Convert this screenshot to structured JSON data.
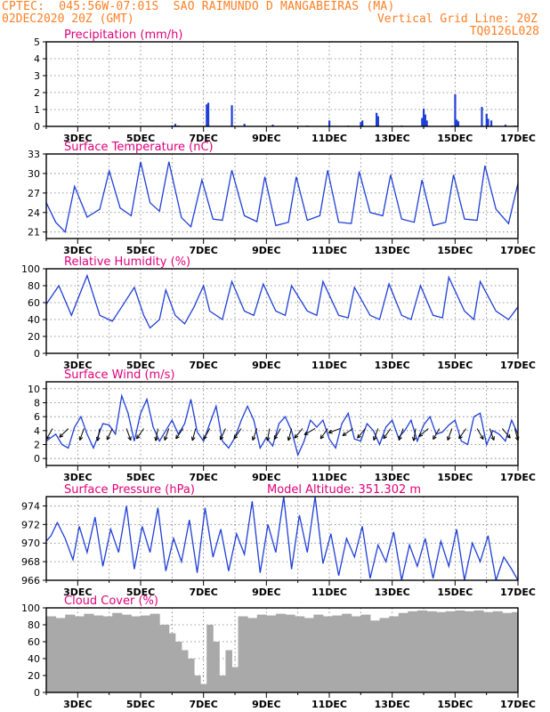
{
  "header": {
    "line1": "CPTEC:  045:56W-07:01S  SAO RAIMUNDO D MANGABEIRAS (MA)",
    "date": "02DEC2020 20Z (GMT)",
    "grid_note": "Vertical Grid Line: 20Z",
    "code": "TQ0126L028"
  },
  "colors": {
    "header": "#ff7f24",
    "title": "#e0007a",
    "series": "#1f3fd6",
    "bars": "#1f3fd6",
    "cloud": "#a9a9a9",
    "arrows": "#000000"
  },
  "x_axis": {
    "ticks": [
      "3DEC",
      "5DEC",
      "7DEC",
      "9DEC",
      "11DEC",
      "13DEC",
      "15DEC",
      "17DEC"
    ],
    "range_days": [
      2.0,
      17.0
    ]
  },
  "chart_data": [
    {
      "id": "precip",
      "type": "bar",
      "title": "Precipitation (mm/h)",
      "ylim": [
        0,
        5
      ],
      "yticks": [
        "0",
        "1",
        "2",
        "3",
        "4",
        "5"
      ],
      "grid": true,
      "bars": [
        [
          2.7,
          0.02
        ],
        [
          3.4,
          0.02
        ],
        [
          4.4,
          0.03
        ],
        [
          5.5,
          0.03
        ],
        [
          6.0,
          0.05
        ],
        [
          6.1,
          0.15
        ],
        [
          6.2,
          0.05
        ],
        [
          7.1,
          1.3
        ],
        [
          7.15,
          1.4
        ],
        [
          7.9,
          1.25
        ],
        [
          8.3,
          0.15
        ],
        [
          9.2,
          0.1
        ],
        [
          10.3,
          0.05
        ],
        [
          11.0,
          0.35
        ],
        [
          11.6,
          0.05
        ],
        [
          12.0,
          0.25
        ],
        [
          12.05,
          0.35
        ],
        [
          12.5,
          0.8
        ],
        [
          12.55,
          0.6
        ],
        [
          13.3,
          0.05
        ],
        [
          13.95,
          0.5
        ],
        [
          14.0,
          1.05
        ],
        [
          14.05,
          0.7
        ],
        [
          14.1,
          0.35
        ],
        [
          14.9,
          0.05
        ],
        [
          15.0,
          1.9
        ],
        [
          15.05,
          0.4
        ],
        [
          15.1,
          0.3
        ],
        [
          15.85,
          1.15
        ],
        [
          16.0,
          0.75
        ],
        [
          16.05,
          0.45
        ],
        [
          16.15,
          0.35
        ],
        [
          16.6,
          0.1
        ],
        [
          16.9,
          0.05
        ]
      ]
    },
    {
      "id": "temp",
      "type": "line",
      "title": "Surface Temperature (nC)",
      "ylim": [
        20,
        33
      ],
      "yticks": [
        "21",
        "24",
        "27",
        "30",
        "33"
      ],
      "ytick_values": [
        21,
        24,
        27,
        30,
        33
      ],
      "grid": true,
      "x": [
        2.0,
        2.3,
        2.6,
        2.9,
        3.3,
        3.7,
        4.0,
        4.35,
        4.7,
        5.0,
        5.3,
        5.6,
        5.9,
        6.3,
        6.6,
        6.95,
        7.3,
        7.6,
        7.9,
        8.3,
        8.7,
        8.95,
        9.3,
        9.7,
        9.95,
        10.3,
        10.7,
        10.95,
        11.3,
        11.7,
        11.95,
        12.3,
        12.7,
        12.95,
        13.3,
        13.7,
        13.95,
        14.3,
        14.7,
        14.95,
        15.3,
        15.7,
        15.95,
        16.3,
        16.7,
        17.0
      ],
      "y": [
        25.5,
        22.5,
        21.0,
        28.0,
        23.3,
        24.5,
        30.4,
        24.7,
        23.5,
        31.8,
        25.5,
        24.2,
        31.8,
        23.2,
        21.8,
        29.0,
        23.0,
        22.8,
        30.5,
        23.5,
        22.6,
        29.5,
        22.0,
        22.5,
        29.5,
        22.8,
        23.5,
        30.5,
        22.5,
        22.3,
        30.3,
        24.0,
        23.5,
        29.8,
        23.0,
        22.5,
        29.0,
        22.0,
        22.5,
        29.8,
        23.0,
        22.8,
        31.2,
        24.5,
        22.3,
        28.5
      ]
    },
    {
      "id": "rh",
      "type": "line",
      "title": "Relative Humidity (%)",
      "ylim": [
        0,
        100
      ],
      "yticks": [
        "0",
        "20",
        "40",
        "60",
        "80",
        "100"
      ],
      "grid": true,
      "x": [
        2.0,
        2.4,
        2.8,
        3.3,
        3.7,
        4.1,
        4.4,
        4.8,
        5.1,
        5.3,
        5.6,
        5.8,
        6.1,
        6.4,
        6.7,
        7.0,
        7.2,
        7.6,
        7.9,
        8.3,
        8.6,
        8.9,
        9.3,
        9.6,
        9.8,
        10.3,
        10.6,
        10.8,
        11.3,
        11.6,
        11.8,
        12.3,
        12.6,
        12.9,
        13.3,
        13.6,
        13.9,
        14.3,
        14.6,
        14.8,
        15.3,
        15.6,
        15.8,
        16.3,
        16.7,
        17.0
      ],
      "y": [
        58,
        80,
        45,
        92,
        45,
        38,
        55,
        78,
        45,
        30,
        40,
        75,
        45,
        35,
        55,
        80,
        50,
        40,
        85,
        50,
        45,
        82,
        50,
        45,
        80,
        50,
        45,
        85,
        45,
        42,
        78,
        45,
        40,
        82,
        45,
        40,
        80,
        45,
        42,
        90,
        50,
        40,
        85,
        50,
        40,
        55
      ]
    },
    {
      "id": "wind",
      "type": "line",
      "title": "Surface Wind (m/s)",
      "ylim": [
        -1,
        11
      ],
      "yticks": [
        "0",
        "2",
        "4",
        "6",
        "8",
        "10"
      ],
      "ytick_values": [
        0,
        2,
        4,
        6,
        8,
        10
      ],
      "grid": true,
      "x": [
        2.0,
        2.3,
        2.5,
        2.7,
        2.9,
        3.1,
        3.3,
        3.5,
        3.8,
        4.0,
        4.2,
        4.4,
        4.6,
        4.8,
        5.0,
        5.2,
        5.4,
        5.6,
        5.8,
        6.0,
        6.2,
        6.4,
        6.6,
        6.8,
        7.0,
        7.2,
        7.4,
        7.6,
        7.8,
        8.0,
        8.2,
        8.4,
        8.6,
        8.8,
        9.0,
        9.2,
        9.4,
        9.6,
        9.8,
        10.0,
        10.2,
        10.4,
        10.6,
        10.8,
        11.0,
        11.2,
        11.4,
        11.6,
        11.8,
        12.0,
        12.2,
        12.4,
        12.6,
        12.8,
        13.0,
        13.2,
        13.4,
        13.6,
        13.8,
        14.0,
        14.2,
        14.4,
        14.6,
        14.8,
        15.0,
        15.2,
        15.4,
        15.6,
        15.8,
        16.0,
        16.2,
        16.4,
        16.6,
        16.8,
        17.0
      ],
      "y": [
        2.5,
        3.5,
        2.0,
        1.5,
        4.5,
        6.0,
        3.5,
        1.5,
        5.0,
        4.8,
        3.5,
        9.0,
        6.5,
        2.5,
        6.5,
        8.5,
        4.5,
        2.5,
        4.0,
        5.5,
        3.5,
        5.0,
        8.5,
        3.8,
        2.5,
        5.0,
        7.5,
        2.5,
        1.5,
        3.0,
        5.5,
        7.5,
        5.5,
        1.5,
        3.0,
        1.8,
        5.0,
        6.0,
        4.0,
        0.5,
        2.5,
        5.5,
        4.5,
        5.5,
        2.8,
        1.5,
        5.0,
        6.5,
        2.8,
        2.5,
        5.0,
        4.0,
        2.0,
        4.5,
        5.5,
        3.0,
        4.0,
        5.5,
        2.5,
        4.8,
        6.0,
        3.5,
        3.8,
        4.8,
        5.5,
        2.5,
        2.0,
        6.0,
        6.5,
        2.0,
        4.0,
        3.5,
        2.5,
        5.5,
        3.5
      ]
    },
    {
      "id": "pressure",
      "type": "line",
      "title": "Surface Pressure (hPa)",
      "annotation": "Model Altitude: 351.302 m",
      "ylim": [
        966,
        975
      ],
      "yticks": [
        "966",
        "968",
        "970",
        "972",
        "974"
      ],
      "ytick_values": [
        966,
        968,
        970,
        972,
        974
      ],
      "grid": true,
      "x": [
        2.0,
        2.15,
        2.35,
        2.6,
        2.85,
        3.05,
        3.3,
        3.55,
        3.8,
        4.05,
        4.3,
        4.55,
        4.8,
        5.05,
        5.3,
        5.55,
        5.8,
        6.05,
        6.3,
        6.55,
        6.8,
        7.05,
        7.3,
        7.55,
        7.8,
        8.05,
        8.3,
        8.55,
        8.8,
        9.05,
        9.3,
        9.55,
        9.8,
        10.05,
        10.3,
        10.55,
        10.8,
        11.05,
        11.3,
        11.55,
        11.8,
        12.05,
        12.3,
        12.55,
        12.8,
        13.05,
        13.3,
        13.55,
        13.8,
        14.05,
        14.3,
        14.55,
        14.8,
        15.05,
        15.3,
        15.55,
        15.8,
        16.05,
        16.3,
        16.55,
        16.8,
        17.0
      ],
      "y": [
        970.2,
        970.8,
        972.2,
        970.5,
        968.2,
        971.8,
        969.0,
        972.8,
        967.5,
        971.5,
        969.0,
        974.0,
        967.2,
        971.8,
        969.0,
        973.8,
        967.0,
        970.5,
        968.0,
        972.5,
        966.8,
        973.8,
        968.5,
        971.5,
        967.0,
        971.0,
        968.8,
        974.5,
        966.8,
        972.0,
        969.0,
        975.0,
        967.2,
        973.0,
        969.0,
        975.0,
        967.8,
        971.0,
        966.5,
        970.5,
        968.5,
        971.8,
        966.2,
        969.8,
        968.0,
        971.2,
        966.0,
        969.8,
        967.5,
        970.5,
        966.2,
        970.2,
        967.5,
        971.5,
        966.0,
        970.0,
        968.0,
        970.8,
        966.0,
        968.5,
        967.2,
        966.0
      ]
    },
    {
      "id": "cloud",
      "type": "area",
      "title": "Cloud Cover (%)",
      "ylim": [
        0,
        100
      ],
      "yticks": [
        "0",
        "20",
        "40",
        "60",
        "80",
        "100"
      ],
      "grid": true,
      "x": [
        2.0,
        2.3,
        2.6,
        2.9,
        3.2,
        3.5,
        3.8,
        4.1,
        4.4,
        4.7,
        5.0,
        5.3,
        5.6,
        5.9,
        6.1,
        6.3,
        6.5,
        6.7,
        6.9,
        7.1,
        7.3,
        7.5,
        7.7,
        7.9,
        8.1,
        8.4,
        8.7,
        9.0,
        9.3,
        9.6,
        9.9,
        10.2,
        10.5,
        10.8,
        11.1,
        11.4,
        11.7,
        12.0,
        12.3,
        12.6,
        12.9,
        13.2,
        13.5,
        13.8,
        14.1,
        14.4,
        14.7,
        15.0,
        15.3,
        15.6,
        15.9,
        16.2,
        16.5,
        16.8,
        17.0
      ],
      "y": [
        90,
        88,
        92,
        90,
        93,
        91,
        90,
        94,
        92,
        90,
        91,
        93,
        80,
        70,
        60,
        50,
        40,
        20,
        10,
        80,
        60,
        20,
        50,
        30,
        90,
        88,
        92,
        91,
        93,
        92,
        90,
        88,
        92,
        90,
        91,
        93,
        90,
        92,
        85,
        88,
        90,
        94,
        96,
        97,
        96,
        95,
        96,
        97,
        96,
        97,
        95,
        96,
        94,
        95,
        96
      ]
    }
  ],
  "wind_arrows": [
    [
      2.2,
      210
    ],
    [
      2.7,
      225
    ],
    [
      3.2,
      200
    ],
    [
      3.7,
      190
    ],
    [
      4.1,
      205
    ],
    [
      4.55,
      160
    ],
    [
      5.1,
      215
    ],
    [
      5.55,
      190
    ],
    [
      5.9,
      200
    ],
    [
      6.35,
      215
    ],
    [
      6.75,
      195
    ],
    [
      7.2,
      210
    ],
    [
      7.7,
      205
    ],
    [
      8.2,
      215
    ],
    [
      8.7,
      200
    ],
    [
      9.1,
      190
    ],
    [
      9.45,
      210
    ],
    [
      9.8,
      195
    ],
    [
      10.15,
      220
    ],
    [
      10.55,
      240
    ],
    [
      10.95,
      215
    ],
    [
      11.35,
      250
    ],
    [
      11.75,
      235
    ],
    [
      12.15,
      220
    ],
    [
      12.55,
      200
    ],
    [
      12.95,
      215
    ],
    [
      13.35,
      200
    ],
    [
      13.75,
      190
    ],
    [
      14.15,
      230
    ],
    [
      14.5,
      210
    ],
    [
      14.9,
      200
    ],
    [
      15.35,
      215
    ],
    [
      15.7,
      150
    ],
    [
      16.1,
      160
    ],
    [
      16.5,
      140
    ],
    [
      16.9,
      165
    ]
  ]
}
